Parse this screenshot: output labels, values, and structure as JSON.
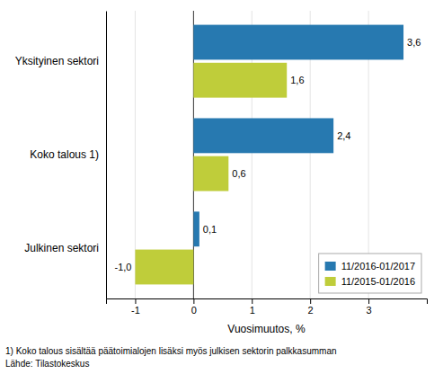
{
  "chart_data": {
    "type": "bar",
    "orientation": "horizontal",
    "categories": [
      "Julkinen sektori",
      "Koko talous 1)",
      "Yksityinen sektori"
    ],
    "series": [
      {
        "name": "11/2016-01/2017",
        "color": "#2779B0",
        "values": [
          0.1,
          2.4,
          3.6
        ],
        "value_labels": [
          "0,1",
          "2,4",
          "3,6"
        ]
      },
      {
        "name": "11/2015-01/2016",
        "color": "#BFCD3A",
        "values": [
          -1.0,
          0.6,
          1.6
        ],
        "value_labels": [
          "-1,0",
          "0,6",
          "1,6"
        ]
      }
    ],
    "xlabel": "Vuosimuutos, %",
    "xlim": [
      -1.5,
      4.0
    ],
    "xticks": [
      -1,
      0,
      1,
      2,
      3
    ],
    "grid": true,
    "legend": "lower right",
    "data_labels": true,
    "annotations": [
      "1) Koko talous sisältää päätoimialojen lisäksi myös julkisen sektorin palkkasumman",
      "Lähde: Tilastokeskus"
    ]
  }
}
